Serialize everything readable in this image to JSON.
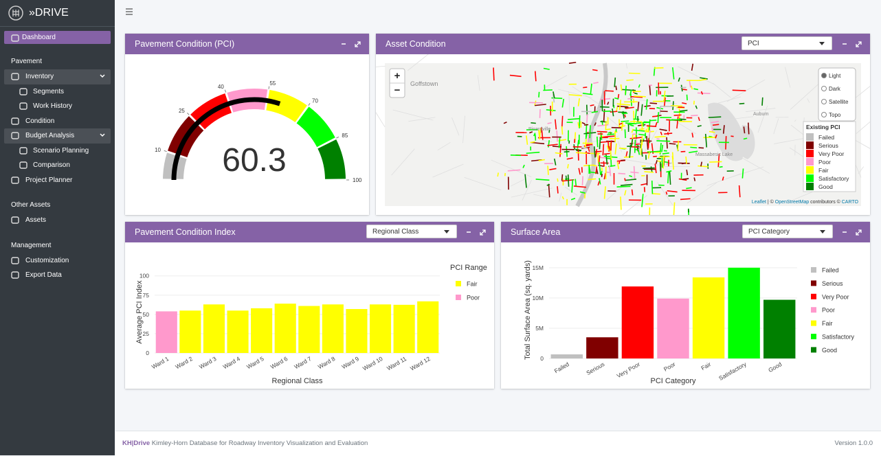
{
  "brand": "»DRIVE",
  "sidebar": {
    "dashboard": "Dashboard",
    "sections": [
      {
        "title": "Pavement",
        "items": [
          {
            "label": "Inventory",
            "children": [
              "Segments",
              "Work History"
            ]
          },
          {
            "label": "Condition"
          },
          {
            "label": "Budget Analysis",
            "children": [
              "Scenario Planning",
              "Comparison"
            ]
          },
          {
            "label": "Project Planner"
          }
        ]
      },
      {
        "title": "Other Assets",
        "items": [
          {
            "label": "Assets"
          }
        ]
      },
      {
        "title": "Management",
        "items": [
          {
            "label": "Customization"
          },
          {
            "label": "Export Data"
          }
        ]
      }
    ]
  },
  "map": {
    "title": "Asset Condition",
    "control": "PCI",
    "zoom": [
      "+",
      "−"
    ],
    "layers": [
      "Light",
      "Dark",
      "Satellite",
      "Topo"
    ],
    "legend_title": "Existing PCI",
    "legend": [
      {
        "label": "Failed",
        "color": "#c0c0c0"
      },
      {
        "label": "Serious",
        "color": "#800000"
      },
      {
        "label": "Very Poor",
        "color": "#ff0000"
      },
      {
        "label": "Poor",
        "color": "#ff99cc"
      },
      {
        "label": "Fair",
        "color": "#ffff00"
      },
      {
        "label": "Satisfactory",
        "color": "#00ff00"
      },
      {
        "label": "Good",
        "color": "#008000"
      }
    ],
    "places": [
      "Goffstown",
      "Pinardville",
      "Auburn",
      "Massabesic Lake"
    ],
    "attribution": [
      "Leaflet",
      " | © ",
      "OpenStreetMap",
      " contributors © ",
      "CARTO"
    ]
  },
  "chart_data": [
    {
      "type": "gauge",
      "title": "Pavement Condition (PCI)",
      "value": 60.3,
      "range": [
        0,
        100
      ],
      "ticks": [
        10,
        25,
        40,
        55,
        70,
        85,
        100
      ],
      "band_colors": [
        "#c0c0c0",
        "#800000",
        "#ff0000",
        "#ff99cc",
        "#ffff00",
        "#00ff00",
        "#008000"
      ]
    },
    {
      "type": "bar",
      "title": "Pavement Condition Index",
      "control": "Regional Class",
      "categories": [
        "Ward 1",
        "Ward 2",
        "Ward 3",
        "Ward 4",
        "Ward 5",
        "Ward 6",
        "Ward 7",
        "Ward 8",
        "Ward 9",
        "Ward 10",
        "Ward 11",
        "Ward 12"
      ],
      "series": [
        {
          "name": "Fair",
          "color": "#ffff00",
          "values": [
            null,
            55,
            63,
            55,
            58,
            64,
            61,
            63,
            57,
            63,
            62.5,
            67
          ]
        },
        {
          "name": "Poor",
          "color": "#ff99cc",
          "values": [
            54,
            null,
            null,
            null,
            null,
            null,
            null,
            null,
            null,
            null,
            null,
            null
          ]
        }
      ],
      "legend_title": "PCI Range",
      "x_label": "Regional Class",
      "y_label": "Average PCI Index",
      "ylim": [
        0,
        106
      ],
      "yticks": [
        0,
        25,
        50,
        75,
        100
      ],
      "grid": true
    },
    {
      "type": "bar",
      "title": "Surface Area",
      "control": "PCI Category",
      "categories": [
        "Failed",
        "Serious",
        "Very Poor",
        "Poor",
        "Fair",
        "Satisfactory",
        "Good"
      ],
      "values": [
        680000,
        3500000,
        11900000,
        9900000,
        13400000,
        15000000,
        9700000
      ],
      "colors": [
        "#c0c0c0",
        "#800000",
        "#ff0000",
        "#ff99cc",
        "#ffff00",
        "#00ff00",
        "#008000"
      ],
      "x_label": "PCI Category",
      "y_label": "Total Surface Area (sq. yards)",
      "ylim": [
        0,
        16000000
      ],
      "yticks": [
        0,
        {
          "value": 5000000,
          "label": "5M"
        },
        {
          "value": 10000000,
          "label": "10M"
        },
        {
          "value": 15000000,
          "label": "15M"
        }
      ],
      "grid": true
    }
  ],
  "footer": {
    "brand": "KH|Drive",
    "tagline": "Kimley-Horn Database for Roadway Inventory Visualization and Evaluation",
    "version": "Version 1.0.0"
  }
}
